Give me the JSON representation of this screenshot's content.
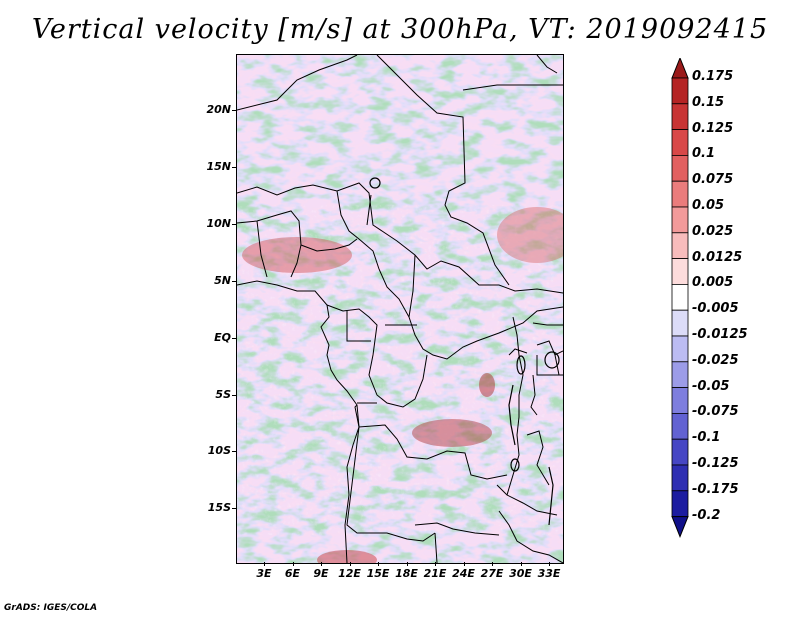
{
  "title": "Vertical velocity [m/s] at 300hPa, VT: 2019092415",
  "credit": "GrADS: IGES/COLA",
  "map": {
    "region": "Central Africa",
    "lat_labels": [
      "20N",
      "15N",
      "10N",
      "5N",
      "EQ",
      "5S",
      "10S",
      "15S"
    ],
    "lon_labels": [
      "3E",
      "6E",
      "9E",
      "12E",
      "15E",
      "18E",
      "21E",
      "24E",
      "27E",
      "30E",
      "33E"
    ],
    "field": "vertical velocity",
    "colors": {
      "positive": "#e87070",
      "negative": "#7070e0",
      "border": "#000000"
    }
  },
  "colorbar": {
    "labels": [
      "0.175",
      "0.15",
      "0.125",
      "0.1",
      "0.075",
      "0.05",
      "0.025",
      "0.0125",
      "0.005",
      "-0.005",
      "-0.0125",
      "-0.025",
      "-0.05",
      "-0.075",
      "-0.1",
      "-0.125",
      "-0.175",
      "-0.2"
    ],
    "colors": [
      "#9a1a1a",
      "#b52424",
      "#c83434",
      "#d84848",
      "#e26060",
      "#ea7c7c",
      "#f29a9a",
      "#f8bcbc",
      "#fddcdc",
      "#ffffff",
      "#dcdcf8",
      "#bcbcf2",
      "#9c9ce8",
      "#7e7ede",
      "#6262d2",
      "#4646c4",
      "#2e2eb2",
      "#1c1ca0",
      "#10108a"
    ]
  }
}
